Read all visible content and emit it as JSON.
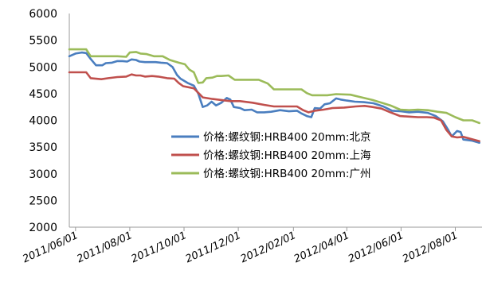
{
  "chart_data": {
    "type": "line",
    "title": "",
    "xlabel": "",
    "ylabel": "",
    "ylim": [
      2000,
      6000
    ],
    "yticks": [
      "6000",
      "5500",
      "5000",
      "4500",
      "4000",
      "3500",
      "3000",
      "2500",
      "2000"
    ],
    "xlim": [
      "2011-05-25",
      "2012-08-31"
    ],
    "xticks": [
      {
        "label": "2011/06/01",
        "date": "2011-06-01"
      },
      {
        "label": "2011/08/01",
        "date": "2011-08-01"
      },
      {
        "label": "2011/10/01",
        "date": "2011-10-01"
      },
      {
        "label": "2011/12/01",
        "date": "2011-12-01"
      },
      {
        "label": "2012/02/01",
        "date": "2012-02-01"
      },
      {
        "label": "2012/04/01",
        "date": "2012-04-01"
      },
      {
        "label": "2012/06/01",
        "date": "2012-06-01"
      },
      {
        "label": "2012/08/01",
        "date": "2012-08-01"
      }
    ],
    "grid": false,
    "legend_position": "center-right",
    "series": [
      {
        "name": "价格:螺纹钢:HRB400 20mm:北京",
        "color": "#4a7ebf",
        "points": [
          [
            "2011-05-25",
            5200
          ],
          [
            "2011-06-01",
            5250
          ],
          [
            "2011-06-08",
            5270
          ],
          [
            "2011-06-13",
            5260
          ],
          [
            "2011-06-18",
            5150
          ],
          [
            "2011-06-24",
            5030
          ],
          [
            "2011-07-01",
            5030
          ],
          [
            "2011-07-05",
            5070
          ],
          [
            "2011-07-12",
            5080
          ],
          [
            "2011-07-18",
            5110
          ],
          [
            "2011-07-24",
            5110
          ],
          [
            "2011-07-29",
            5100
          ],
          [
            "2011-08-03",
            5140
          ],
          [
            "2011-08-08",
            5130
          ],
          [
            "2011-08-12",
            5100
          ],
          [
            "2011-08-18",
            5090
          ],
          [
            "2011-08-30",
            5090
          ],
          [
            "2011-09-05",
            5080
          ],
          [
            "2011-09-12",
            5070
          ],
          [
            "2011-09-18",
            5000
          ],
          [
            "2011-09-23",
            4850
          ],
          [
            "2011-09-27",
            4780
          ],
          [
            "2011-10-05",
            4700
          ],
          [
            "2011-10-12",
            4650
          ],
          [
            "2011-10-17",
            4500
          ],
          [
            "2011-10-22",
            4250
          ],
          [
            "2011-10-27",
            4280
          ],
          [
            "2011-11-01",
            4350
          ],
          [
            "2011-11-06",
            4280
          ],
          [
            "2011-11-12",
            4330
          ],
          [
            "2011-11-18",
            4420
          ],
          [
            "2011-11-22",
            4390
          ],
          [
            "2011-11-26",
            4250
          ],
          [
            "2011-12-03",
            4230
          ],
          [
            "2011-12-08",
            4190
          ],
          [
            "2011-12-16",
            4200
          ],
          [
            "2011-12-22",
            4150
          ],
          [
            "2011-12-30",
            4150
          ],
          [
            "2012-01-07",
            4160
          ],
          [
            "2012-01-17",
            4190
          ],
          [
            "2012-01-27",
            4170
          ],
          [
            "2012-02-05",
            4180
          ],
          [
            "2012-02-10",
            4130
          ],
          [
            "2012-02-16",
            4080
          ],
          [
            "2012-02-21",
            4060
          ],
          [
            "2012-02-25",
            4230
          ],
          [
            "2012-03-02",
            4220
          ],
          [
            "2012-03-07",
            4300
          ],
          [
            "2012-03-13",
            4320
          ],
          [
            "2012-03-20",
            4410
          ],
          [
            "2012-03-25",
            4390
          ],
          [
            "2012-04-01",
            4370
          ],
          [
            "2012-04-10",
            4350
          ],
          [
            "2012-04-20",
            4340
          ],
          [
            "2012-05-01",
            4320
          ],
          [
            "2012-05-12",
            4260
          ],
          [
            "2012-05-22",
            4180
          ],
          [
            "2012-06-01",
            4170
          ],
          [
            "2012-06-10",
            4150
          ],
          [
            "2012-06-20",
            4160
          ],
          [
            "2012-07-01",
            4140
          ],
          [
            "2012-07-10",
            4080
          ],
          [
            "2012-07-18",
            3980
          ],
          [
            "2012-07-24",
            3820
          ],
          [
            "2012-07-28",
            3700
          ],
          [
            "2012-08-03",
            3800
          ],
          [
            "2012-08-07",
            3780
          ],
          [
            "2012-08-10",
            3640
          ],
          [
            "2012-08-20",
            3620
          ],
          [
            "2012-08-28",
            3580
          ]
        ]
      },
      {
        "name": "价格:螺纹钢:HRB400 20mm:上海",
        "color": "#c0504d",
        "points": [
          [
            "2011-05-25",
            4900
          ],
          [
            "2011-06-13",
            4900
          ],
          [
            "2011-06-18",
            4790
          ],
          [
            "2011-06-30",
            4770
          ],
          [
            "2011-07-08",
            4790
          ],
          [
            "2011-07-18",
            4810
          ],
          [
            "2011-07-28",
            4820
          ],
          [
            "2011-08-03",
            4860
          ],
          [
            "2011-08-08",
            4840
          ],
          [
            "2011-08-13",
            4840
          ],
          [
            "2011-08-18",
            4820
          ],
          [
            "2011-08-26",
            4830
          ],
          [
            "2011-09-02",
            4820
          ],
          [
            "2011-09-12",
            4790
          ],
          [
            "2011-09-20",
            4780
          ],
          [
            "2011-09-25",
            4700
          ],
          [
            "2011-09-30",
            4640
          ],
          [
            "2011-10-12",
            4600
          ],
          [
            "2011-10-18",
            4500
          ],
          [
            "2011-10-22",
            4430
          ],
          [
            "2011-11-02",
            4400
          ],
          [
            "2011-11-12",
            4380
          ],
          [
            "2011-11-22",
            4360
          ],
          [
            "2011-12-03",
            4360
          ],
          [
            "2011-12-17",
            4330
          ],
          [
            "2011-12-30",
            4290
          ],
          [
            "2012-01-10",
            4260
          ],
          [
            "2012-01-25",
            4260
          ],
          [
            "2012-02-05",
            4260
          ],
          [
            "2012-02-12",
            4190
          ],
          [
            "2012-02-18",
            4150
          ],
          [
            "2012-02-25",
            4180
          ],
          [
            "2012-03-06",
            4200
          ],
          [
            "2012-03-16",
            4230
          ],
          [
            "2012-03-29",
            4240
          ],
          [
            "2012-04-11",
            4260
          ],
          [
            "2012-04-21",
            4270
          ],
          [
            "2012-04-30",
            4250
          ],
          [
            "2012-05-10",
            4220
          ],
          [
            "2012-05-20",
            4150
          ],
          [
            "2012-05-31",
            4080
          ],
          [
            "2012-06-10",
            4070
          ],
          [
            "2012-06-20",
            4060
          ],
          [
            "2012-06-30",
            4060
          ],
          [
            "2012-07-08",
            4050
          ],
          [
            "2012-07-16",
            4000
          ],
          [
            "2012-07-22",
            3820
          ],
          [
            "2012-07-28",
            3700
          ],
          [
            "2012-08-03",
            3680
          ],
          [
            "2012-08-10",
            3690
          ],
          [
            "2012-08-19",
            3650
          ],
          [
            "2012-08-28",
            3610
          ]
        ]
      },
      {
        "name": "价格:螺纹钢:HRB400 20mm:广州",
        "color": "#9bbb59",
        "points": [
          [
            "2011-05-25",
            5330
          ],
          [
            "2011-06-13",
            5330
          ],
          [
            "2011-06-18",
            5200
          ],
          [
            "2011-06-28",
            5200
          ],
          [
            "2011-07-18",
            5200
          ],
          [
            "2011-07-28",
            5190
          ],
          [
            "2011-08-01",
            5270
          ],
          [
            "2011-08-08",
            5280
          ],
          [
            "2011-08-13",
            5250
          ],
          [
            "2011-08-20",
            5240
          ],
          [
            "2011-08-28",
            5200
          ],
          [
            "2011-09-07",
            5200
          ],
          [
            "2011-09-15",
            5130
          ],
          [
            "2011-09-25",
            5080
          ],
          [
            "2011-10-02",
            5050
          ],
          [
            "2011-10-07",
            4950
          ],
          [
            "2011-10-12",
            4900
          ],
          [
            "2011-10-17",
            4700
          ],
          [
            "2011-10-22",
            4710
          ],
          [
            "2011-10-26",
            4790
          ],
          [
            "2011-11-02",
            4800
          ],
          [
            "2011-11-07",
            4830
          ],
          [
            "2011-11-12",
            4830
          ],
          [
            "2011-11-20",
            4840
          ],
          [
            "2011-11-27",
            4760
          ],
          [
            "2011-12-10",
            4760
          ],
          [
            "2011-12-24",
            4760
          ],
          [
            "2012-01-03",
            4690
          ],
          [
            "2012-01-10",
            4580
          ],
          [
            "2012-01-25",
            4580
          ],
          [
            "2012-02-10",
            4580
          ],
          [
            "2012-02-16",
            4510
          ],
          [
            "2012-02-22",
            4470
          ],
          [
            "2012-03-10",
            4470
          ],
          [
            "2012-03-20",
            4490
          ],
          [
            "2012-04-05",
            4480
          ],
          [
            "2012-04-15",
            4440
          ],
          [
            "2012-04-30",
            4380
          ],
          [
            "2012-05-10",
            4330
          ],
          [
            "2012-05-20",
            4280
          ],
          [
            "2012-05-31",
            4200
          ],
          [
            "2012-06-10",
            4190
          ],
          [
            "2012-06-20",
            4200
          ],
          [
            "2012-07-01",
            4190
          ],
          [
            "2012-07-12",
            4160
          ],
          [
            "2012-07-22",
            4140
          ],
          [
            "2012-08-01",
            4060
          ],
          [
            "2012-08-10",
            4000
          ],
          [
            "2012-08-20",
            4000
          ],
          [
            "2012-08-28",
            3950
          ]
        ]
      }
    ]
  }
}
